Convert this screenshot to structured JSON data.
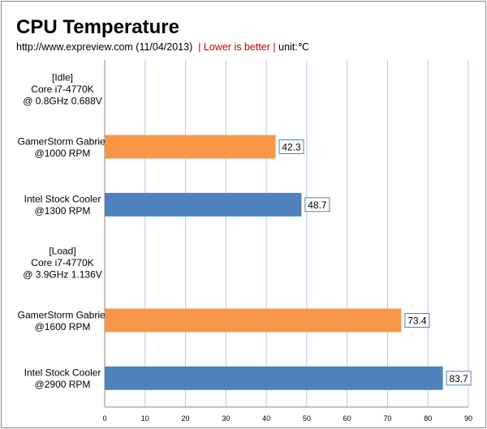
{
  "chart_data": {
    "type": "bar",
    "orientation": "horizontal",
    "title": "CPU Temperature",
    "subtitle": {
      "source": "http://www.expreview.com (11/04/2013)",
      "note": "| Lower is better |",
      "unit": "unit:℃"
    },
    "categories": [
      [
        "[Idle]",
        "Core i7-4770K",
        "@ 0.8GHz 0.688V"
      ],
      [
        "GamerStorm Gabriel",
        "@1000 RPM"
      ],
      [
        "Intel Stock Cooler",
        "@1300 RPM"
      ],
      [
        "[Load]",
        "Core i7-4770K",
        "@ 3.9GHz 1.136V"
      ],
      [
        "GamerStorm Gabriel",
        "@1600 RPM"
      ],
      [
        "Intel Stock Cooler",
        "@2900 RPM"
      ]
    ],
    "values": [
      null,
      42.3,
      48.7,
      null,
      73.4,
      83.7
    ],
    "data_labels": [
      "",
      "42.3",
      "48.7",
      "",
      "73.4",
      "83.7"
    ],
    "bar_colors": [
      "",
      "#f79646",
      "#4f81bd",
      "",
      "#f79646",
      "#4f81bd"
    ],
    "xlim": [
      0,
      90
    ],
    "xticks": [
      "0",
      "10",
      "20",
      "30",
      "40",
      "50",
      "60",
      "70",
      "80",
      "90"
    ],
    "grid": true,
    "xlabel": "",
    "ylabel": ""
  }
}
